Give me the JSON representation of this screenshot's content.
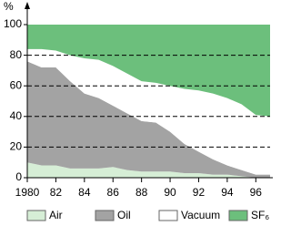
{
  "chart_data": {
    "type": "stacked_area",
    "y_label": "%",
    "x": [
      1980,
      1981,
      1982,
      1983,
      1984,
      1985,
      1986,
      1987,
      1988,
      1989,
      1990,
      1991,
      1992,
      1993,
      1994,
      1995,
      1996,
      1997
    ],
    "series": [
      {
        "name": "Air",
        "color": "#d6eed6",
        "values": [
          10,
          8,
          8,
          6,
          6,
          6,
          7,
          5,
          4,
          4,
          4,
          3,
          3,
          2,
          2,
          1,
          0,
          0
        ]
      },
      {
        "name": "Oil",
        "color": "#a3a3a3",
        "values": [
          66,
          64,
          64,
          57,
          49,
          46,
          40,
          37,
          33,
          32,
          26,
          19,
          14,
          10,
          6,
          4,
          2,
          2
        ]
      },
      {
        "name": "Vacuum",
        "color": "#ffffff",
        "values": [
          8,
          12,
          11,
          17,
          23,
          25,
          26,
          26,
          26,
          26,
          30,
          36,
          40,
          43,
          44,
          43,
          39,
          38
        ]
      },
      {
        "name": "SF₆",
        "color": "#6cbf7c",
        "values": [
          16,
          16,
          17,
          20,
          22,
          23,
          27,
          32,
          37,
          38,
          40,
          42,
          43,
          45,
          48,
          52,
          59,
          60
        ]
      }
    ],
    "xlim": [
      1980,
      1997
    ],
    "xticks": [
      1980,
      {
        "value": 1982,
        "label": "82"
      },
      {
        "value": 1984,
        "label": "84"
      },
      {
        "value": 1986,
        "label": "86"
      },
      {
        "value": 1988,
        "label": "88"
      },
      {
        "value": 1990,
        "label": "90"
      },
      {
        "value": 1992,
        "label": "92"
      },
      {
        "value": 1994,
        "label": "94"
      },
      {
        "value": 1996,
        "label": "96"
      }
    ],
    "ylim": [
      0,
      100
    ],
    "yticks": [
      0,
      20,
      40,
      60,
      80,
      100
    ],
    "grid": true,
    "legend": "bottom"
  }
}
